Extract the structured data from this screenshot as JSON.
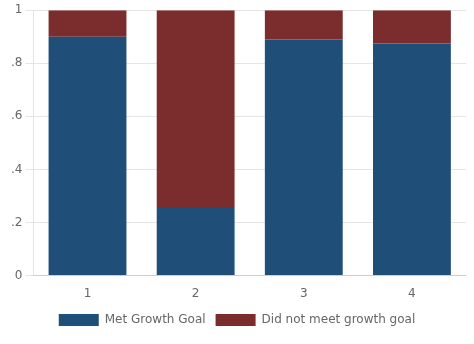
{
  "chart_data": {
    "type": "bar",
    "stacked": true,
    "categories": [
      "1",
      "2",
      "3",
      "4"
    ],
    "series": [
      {
        "name": "Met Growth Goal",
        "color": "#1F4E79",
        "values": [
          0.9,
          0.255,
          0.89,
          0.875
        ]
      },
      {
        "name": "Did not meet growth goal",
        "color": "#7B2C2C",
        "values": [
          0.1,
          0.745,
          0.11,
          0.125
        ]
      }
    ],
    "ylim": [
      0,
      1
    ],
    "yticks": [
      0,
      {
        "value": 0.2,
        "label": ".2"
      },
      {
        "value": 0.4,
        "label": ".4"
      },
      {
        "value": 0.6,
        "label": ".6"
      },
      {
        "value": 0.8,
        "label": ".8"
      },
      1
    ],
    "grid": true,
    "legend": "bottom"
  }
}
